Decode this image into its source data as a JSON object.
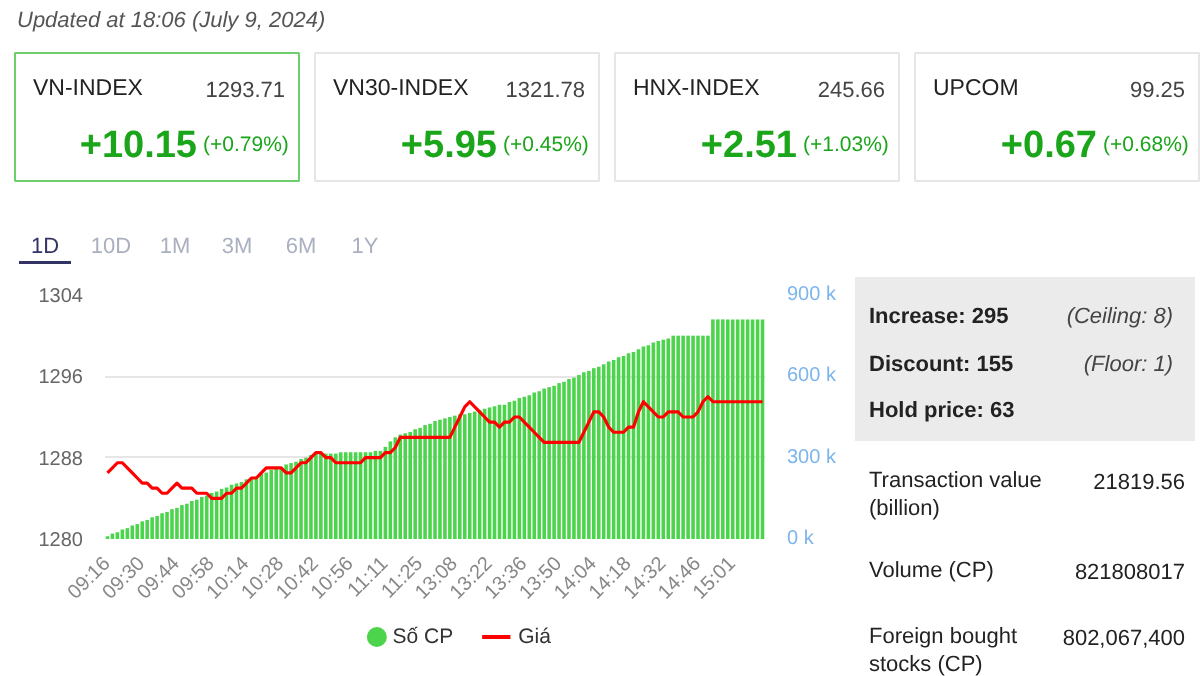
{
  "chart_data": [
    {
      "type": "other",
      "title": "Updated at 18:06 (July 9, 2024)",
      "annotations": [
        "VN-INDEX",
        "1293.71",
        "+10.15",
        "(+0.79%)",
        "VN30-INDEX",
        "1321.78",
        "+5.95",
        "(+0.45%)",
        "HNX-INDEX",
        "245.66",
        "+2.51",
        "(+1.03%)",
        "UPCOM",
        "99.25",
        "+0.67",
        "(+0.68%)"
      ]
    },
    {
      "type": "bar",
      "annotations": [
        "1D",
        "10D",
        "1M",
        "3M",
        "6M",
        "1Y"
      ],
      "grid": "y",
      "legend": "bottom",
      "categories": [
        "09:16",
        null,
        null,
        null,
        null,
        null,
        null,
        "09:30",
        null,
        null,
        null,
        null,
        null,
        null,
        "09:44",
        null,
        null,
        null,
        null,
        null,
        null,
        "09:58",
        null,
        null,
        null,
        null,
        null,
        null,
        "10:14",
        null,
        null,
        null,
        null,
        null,
        null,
        "10:28",
        null,
        null,
        null,
        null,
        null,
        null,
        "10:42",
        null,
        null,
        null,
        null,
        null,
        null,
        "10:56",
        null,
        null,
        null,
        null,
        null,
        null,
        "11:11",
        null,
        null,
        null,
        null,
        null,
        null,
        "11:25",
        null,
        null,
        null,
        null,
        null,
        null,
        "13:08",
        null,
        null,
        null,
        null,
        null,
        null,
        "13:22",
        null,
        null,
        null,
        null,
        null,
        null,
        "13:36",
        null,
        null,
        null,
        null,
        null,
        null,
        "13:50",
        null,
        null,
        null,
        null,
        null,
        null,
        "14:04",
        null,
        null,
        null,
        null,
        null,
        null,
        "14:18",
        null,
        null,
        null,
        null,
        null,
        null,
        "14:32",
        null,
        null,
        null,
        null,
        null,
        null,
        "14:46",
        null,
        null,
        null,
        null,
        null,
        null,
        "15:01",
        null,
        null,
        null,
        null,
        null,
        null
      ],
      "ylim": [
        1280,
        1304
      ],
      "yticks": [
        1280,
        1288,
        1296,
        1304
      ],
      "y2lim": [
        0,
        900
      ],
      "y2ticks": [
        {
          "value": 0,
          "label": "0 k"
        },
        {
          "value": 300,
          "label": "300 k"
        },
        {
          "value": 600,
          "label": "600 k"
        },
        {
          "value": 900,
          "label": "900 k"
        }
      ],
      "series": [
        {
          "name": "Số CP",
          "axis": "y2",
          "color": "#4cd44c",
          "values": [
            10,
            20,
            25,
            35,
            40,
            50,
            55,
            65,
            70,
            80,
            85,
            95,
            100,
            110,
            115,
            125,
            130,
            140,
            145,
            155,
            160,
            170,
            175,
            185,
            190,
            200,
            205,
            210,
            220,
            225,
            230,
            240,
            245,
            255,
            260,
            265,
            275,
            280,
            285,
            295,
            300,
            310,
            315,
            315,
            315,
            315,
            315,
            320,
            320,
            320,
            320,
            320,
            320,
            320,
            325,
            325,
            340,
            360,
            375,
            385,
            390,
            395,
            405,
            410,
            420,
            425,
            435,
            440,
            445,
            450,
            455,
            460,
            460,
            465,
            470,
            475,
            480,
            485,
            490,
            495,
            495,
            505,
            510,
            520,
            525,
            530,
            540,
            545,
            555,
            560,
            565,
            575,
            580,
            590,
            595,
            605,
            615,
            620,
            630,
            635,
            645,
            655,
            660,
            670,
            675,
            685,
            690,
            700,
            710,
            715,
            725,
            730,
            735,
            740,
            750,
            750,
            750,
            750,
            750,
            750,
            750,
            750,
            810,
            810,
            810,
            810,
            810,
            810,
            810,
            810,
            810,
            810,
            810
          ]
        },
        {
          "name": "Giá",
          "type": "line",
          "color": "#ff0000",
          "values": [
            1286.5,
            1287,
            1287.5,
            1287.5,
            1287,
            1286.5,
            1286,
            1285.5,
            1285.5,
            1285,
            1285,
            1284.5,
            1284.5,
            1285,
            1285.5,
            1285,
            1285,
            1285,
            1284.5,
            1284.5,
            1284.5,
            1284,
            1284,
            1284,
            1284.5,
            1284.5,
            1285,
            1285,
            1285.5,
            1286,
            1286,
            1286.5,
            1287,
            1287,
            1287,
            1287,
            1286.5,
            1286.5,
            1287,
            1287.5,
            1287.5,
            1288,
            1288.5,
            1288.5,
            1288,
            1288,
            1287.5,
            1287.5,
            1287.5,
            1287.5,
            1287.5,
            1287.5,
            1288,
            1288,
            1288,
            1288,
            1288.5,
            1288.5,
            1289,
            1290,
            1290,
            1290,
            1290,
            1290,
            1290,
            1290,
            1290,
            1290,
            1290,
            1290,
            1291,
            1292,
            1293,
            1293.5,
            1293,
            1292.5,
            1292,
            1291.5,
            1291.5,
            1291,
            1291.5,
            1291.5,
            1292,
            1292,
            1291.5,
            1291,
            1290.5,
            1290,
            1289.5,
            1289.5,
            1289.5,
            1289.5,
            1289.5,
            1289.5,
            1289.5,
            1289.5,
            1290.5,
            1291.5,
            1292.5,
            1292.5,
            1292,
            1291,
            1290.5,
            1290.5,
            1290.5,
            1291,
            1291,
            1292.5,
            1293.5,
            1293,
            1292.5,
            1292,
            1292,
            1292.5,
            1292.5,
            1292.5,
            1292,
            1292,
            1292,
            1292.5,
            1293.5,
            1294,
            1293.5,
            1293.5,
            1293.5,
            1293.5,
            1293.5,
            1293.5,
            1293.5,
            1293.5,
            1293.5,
            1293.5,
            1293.5
          ]
        }
      ]
    },
    {
      "type": "other",
      "annotations": [
        "Increase: 295",
        "(Ceiling: 8)",
        "Discount: 155",
        "(Floor: 1)",
        "Hold price: 63",
        "Transaction value (billion)",
        "21819.56",
        "Volume (CP)",
        "821808017",
        "Foreign bought stocks (CP)",
        "802,067,400"
      ]
    }
  ]
}
